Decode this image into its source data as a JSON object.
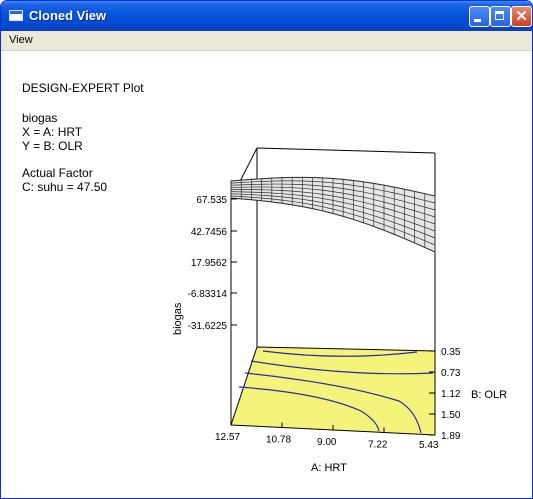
{
  "window": {
    "title": "Cloned View"
  },
  "menu": {
    "items": [
      "View"
    ]
  },
  "info": {
    "plot_title": "DESIGN-EXPERT Plot",
    "response": "biogas",
    "x_factor": "X = A: HRT",
    "y_factor": "Y = B: OLR",
    "actual_factor_header": "Actual Factor",
    "actual_factor": "C: suhu = 47.50"
  },
  "chart_data": {
    "type": "surface",
    "z_label": "biogas",
    "x_label": "A: HRT",
    "y_label": "B: OLR",
    "z_ticks": [
      "67.535",
      "42.7456",
      "17.9562",
      "-6.83314",
      "-31.6225"
    ],
    "x_ticks": [
      "12.57",
      "10.78",
      "9.00",
      "7.22",
      "5.43"
    ],
    "y_ticks": [
      "0.35",
      "0.73",
      "1.12",
      "1.50",
      "1.89"
    ],
    "z_range": [
      -31.6225,
      67.535
    ],
    "x_range": [
      12.57,
      5.43
    ],
    "y_range": [
      0.35,
      1.89
    ],
    "floor_color": "#f5f47a",
    "contour_color": "#2a2aa8",
    "mesh_color": "#303030"
  }
}
